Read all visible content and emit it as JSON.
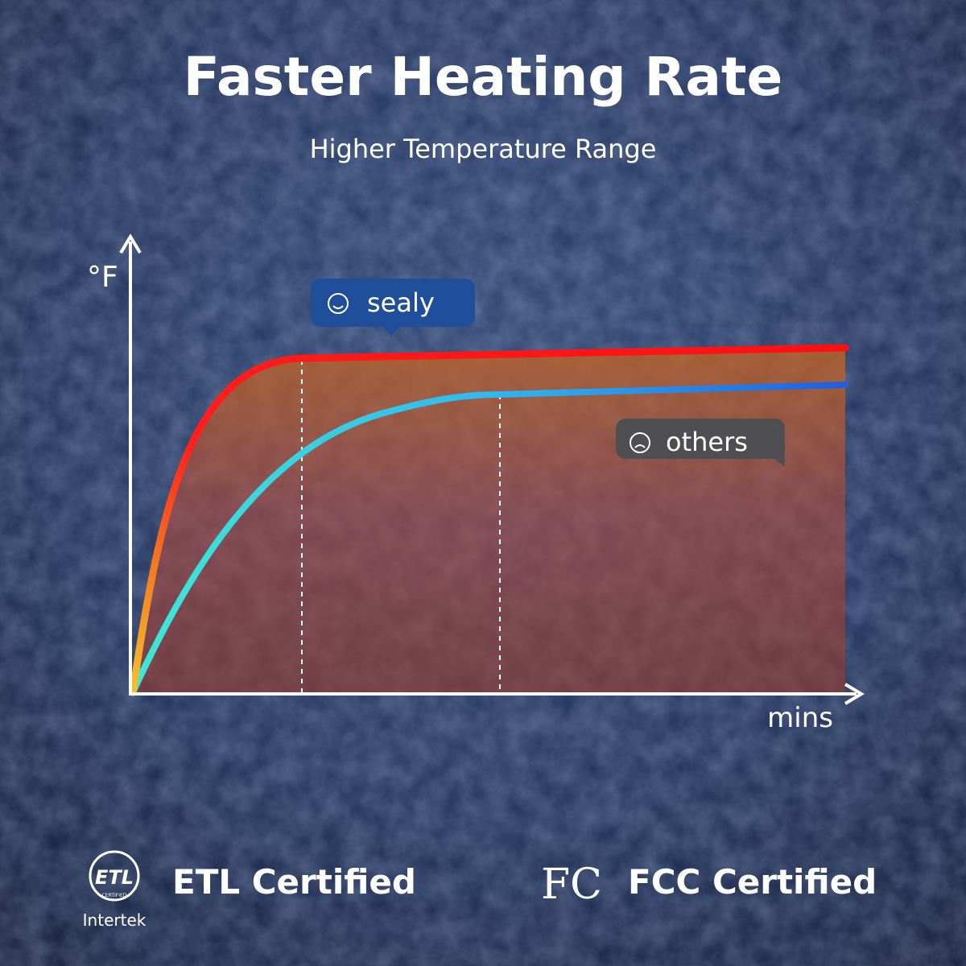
{
  "header": {
    "title": "Faster Heating Rate",
    "subtitle": "Higher Temperature Range"
  },
  "graph": {
    "y_label": "°F",
    "x_label": "mins",
    "bubbles": [
      "sealy",
      "others"
    ]
  },
  "certifications": {
    "etl_logo": "ETL",
    "etl_logo_small": "CERTIFIED",
    "etl_brand": "Intertek",
    "etl": "ETL Certified",
    "fcc_logo": "FC",
    "fcc": "FCC Certified"
  }
}
